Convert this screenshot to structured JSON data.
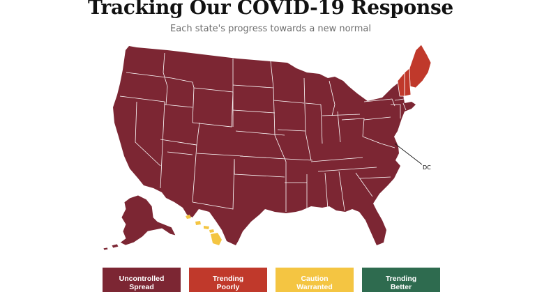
{
  "header": {
    "title": "Tracking Our COVID-19 Response",
    "subtitle": "Each state's progress towards a new normal"
  },
  "map": {
    "dc_label": "DC",
    "colors": {
      "uncontrolled_spread": "#7c2633",
      "trending_poorly": "#c0392b",
      "caution_warranted": "#f4c542",
      "trending_better": "#2e6b4f"
    },
    "states": {
      "uncontrolled_spread": [
        "WA",
        "OR",
        "CA",
        "ID",
        "NV",
        "MT",
        "WY",
        "UT",
        "AZ",
        "CO",
        "NM",
        "ND",
        "SD",
        "NE",
        "KS",
        "OK",
        "TX",
        "MN",
        "IA",
        "MO",
        "AR",
        "LA",
        "WI",
        "IL",
        "MI",
        "IN",
        "OH",
        "KY",
        "TN",
        "MS",
        "AL",
        "GA",
        "FL",
        "SC",
        "NC",
        "VA",
        "WV",
        "PA",
        "NY",
        "NJ",
        "DE",
        "MD",
        "DC",
        "CT",
        "RI",
        "MA",
        "AK"
      ],
      "trending_poorly": [
        "ME",
        "NH",
        "VT"
      ],
      "caution_warranted": [
        "HI"
      ],
      "trending_better": []
    }
  },
  "legend": [
    {
      "label": "Uncontrolled\nSpread",
      "color": "#7c2633"
    },
    {
      "label": "Trending\nPoorly",
      "color": "#c0392b"
    },
    {
      "label": "Caution\nWarranted",
      "color": "#f4c542"
    },
    {
      "label": "Trending\nBetter",
      "color": "#2e6b4f"
    }
  ]
}
